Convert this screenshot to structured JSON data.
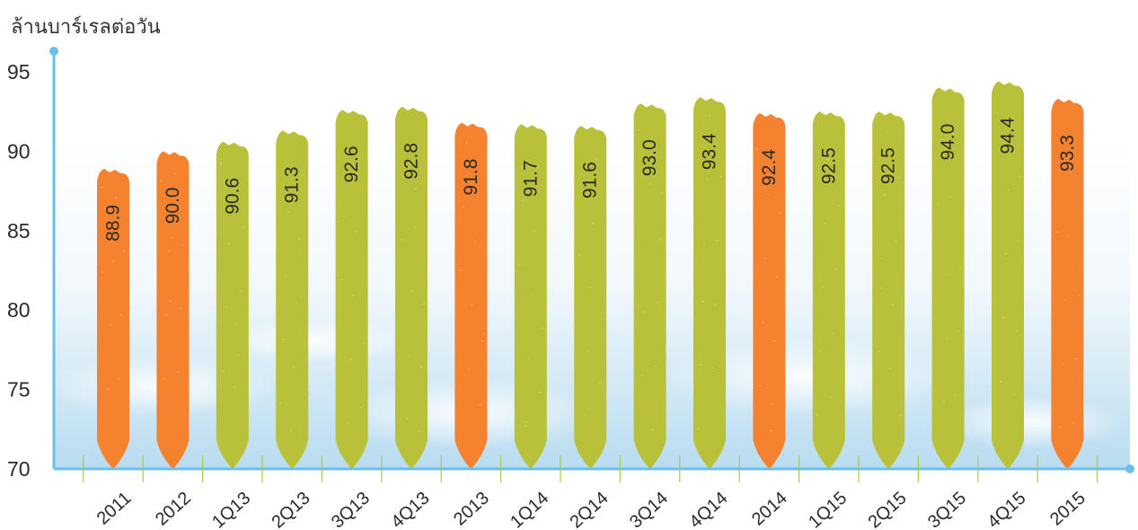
{
  "chart_data": {
    "type": "bar",
    "ylabel": "ล้านบาร์เรลต่อวัน",
    "ylim": [
      70,
      96
    ],
    "yticks": [
      70,
      75,
      80,
      85,
      90,
      95
    ],
    "grid": false,
    "categories": [
      "2011",
      "2012",
      "1Q13",
      "2Q13",
      "3Q13",
      "4Q13",
      "2013",
      "1Q14",
      "2Q14",
      "3Q14",
      "4Q14",
      "2014",
      "1Q15",
      "2Q15",
      "3Q15",
      "4Q15",
      "2015"
    ],
    "values": [
      88.9,
      90.0,
      90.6,
      91.3,
      92.6,
      92.8,
      91.8,
      91.7,
      91.6,
      93.0,
      93.4,
      92.4,
      92.5,
      92.5,
      94.0,
      94.4,
      93.3
    ],
    "value_labels": [
      "88.9",
      "90.0",
      "90.6",
      "91.3",
      "92.6",
      "92.8",
      "91.8",
      "91.7",
      "91.6",
      "93.0",
      "93.4",
      "92.4",
      "92.5",
      "92.5",
      "94.0",
      "94.4",
      "93.3"
    ],
    "annual_color": "#F5822F",
    "quarterly_color": "#B9C13A",
    "axis_color": "#6CC0E8",
    "bar_kinds": [
      "annual",
      "annual",
      "quarterly",
      "quarterly",
      "quarterly",
      "quarterly",
      "annual",
      "quarterly",
      "quarterly",
      "quarterly",
      "quarterly",
      "annual",
      "quarterly",
      "quarterly",
      "quarterly",
      "quarterly",
      "annual"
    ]
  }
}
